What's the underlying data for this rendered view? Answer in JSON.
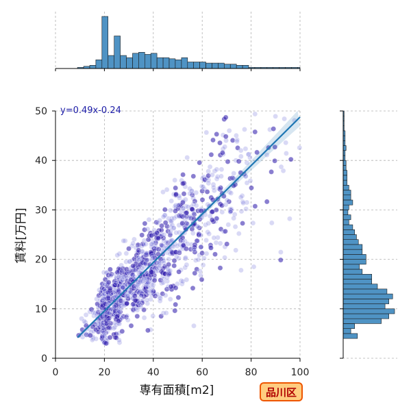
{
  "chart_data": {
    "type": "scatter",
    "xlabel": "専有面積[m2]",
    "ylabel": "賃料[万円]",
    "xlim": [
      0,
      100
    ],
    "ylim": [
      0,
      50
    ],
    "xticks": [
      "0",
      "20",
      "40",
      "60",
      "80",
      "100"
    ],
    "yticks": [
      "0",
      "10",
      "20",
      "30",
      "40",
      "50"
    ],
    "grid": true,
    "annotation": "y=0.49x-0.24",
    "badge": "品川区",
    "regression": {
      "slope": 0.49,
      "intercept": -0.24,
      "x_range": [
        9,
        100
      ]
    },
    "marginal_x_hist": {
      "bin_start": 9,
      "bin_width": 2.5,
      "counts": [
        1,
        2,
        3,
        8,
        48,
        12,
        30,
        12,
        10,
        14,
        15,
        13,
        14,
        10,
        10,
        9,
        8,
        10,
        6,
        6,
        6,
        5,
        5,
        5,
        4,
        4,
        3,
        3,
        1,
        1,
        1,
        1,
        1,
        1,
        1,
        1,
        1
      ]
    },
    "marginal_y_hist": {
      "bin_start": 4,
      "bin_width": 1,
      "counts": [
        15,
        8,
        12,
        40,
        48,
        54,
        44,
        48,
        52,
        46,
        36,
        30,
        30,
        20,
        17,
        24,
        24,
        20,
        20,
        16,
        14,
        12,
        10,
        6,
        8,
        5,
        6,
        10,
        8,
        8,
        6,
        4,
        4,
        4,
        3,
        3,
        2,
        2,
        3,
        2,
        2,
        2,
        1,
        1,
        1,
        1
      ]
    }
  }
}
